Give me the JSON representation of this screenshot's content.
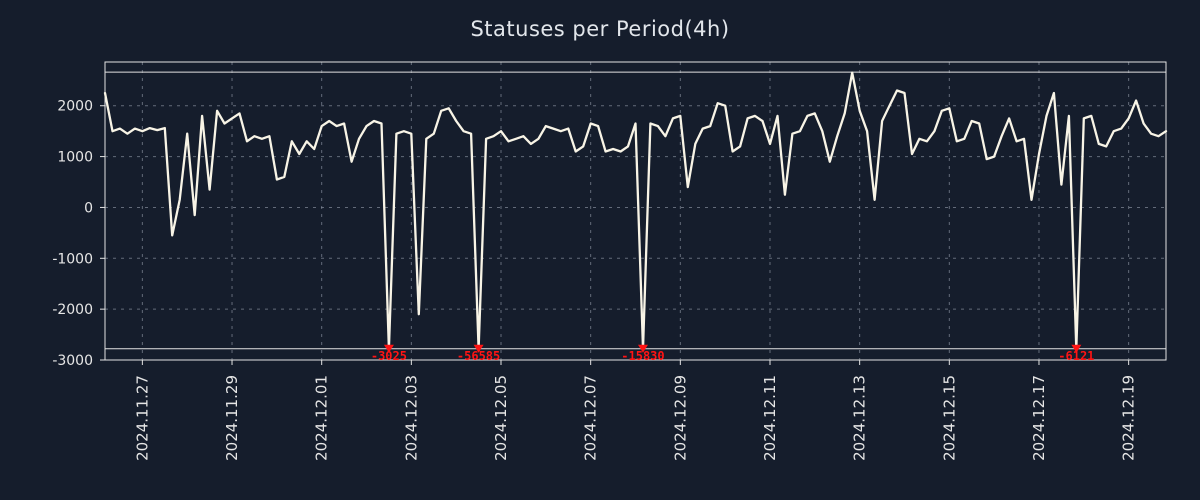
{
  "title": "Statuses per Period(4h)",
  "colors": {
    "background": "#151d2c",
    "line": "#f8f4e6",
    "grid": "#7e8694",
    "border": "#e3e3e3",
    "text": "#e6e6e6",
    "spike": "#ff1414"
  },
  "chart_data": {
    "type": "line",
    "title": "Statuses per Period(4h)",
    "x_start": "2024-11-26 04:00",
    "step_hours": 4,
    "ylim": [
      -3000,
      2860
    ],
    "y_ticks": [
      2000,
      1000,
      0,
      -1000,
      -2000,
      -3000
    ],
    "x_tick_labels": [
      "2024.11.27",
      "2024.11.29",
      "2024.12.01",
      "2024.12.03",
      "2024.12.05",
      "2024.12.07",
      "2024.12.09",
      "2024.12.11",
      "2024.12.13",
      "2024.12.15",
      "2024.12.17",
      "2024.12.19"
    ],
    "x_tick_indices": [
      5,
      17,
      29,
      41,
      53,
      65,
      77,
      89,
      101,
      113,
      125,
      137
    ],
    "x_tick_rotation": 90,
    "grid": true,
    "legend": false,
    "clip_top": 2660,
    "clip_bottom": -2780,
    "values": [
      2250,
      1500,
      1550,
      1450,
      1550,
      1500,
      1560,
      1520,
      1560,
      -550,
      150,
      1450,
      -150,
      1800,
      350,
      1900,
      1650,
      1750,
      1850,
      1300,
      1400,
      1350,
      1400,
      550,
      600,
      1300,
      1050,
      1300,
      1150,
      1600,
      1700,
      1600,
      1650,
      900,
      1350,
      1600,
      1700,
      1650,
      -3025,
      1450,
      1500,
      1450,
      -2100,
      1350,
      1450,
      1900,
      1950,
      1700,
      1500,
      1450,
      -56585,
      1350,
      1400,
      1500,
      1300,
      1350,
      1400,
      1250,
      1350,
      1600,
      1550,
      1500,
      1550,
      1100,
      1200,
      1650,
      1600,
      1100,
      1150,
      1100,
      1200,
      1650,
      -15830,
      1650,
      1600,
      1400,
      1750,
      1800,
      400,
      1250,
      1550,
      1600,
      2050,
      2000,
      1100,
      1200,
      1750,
      1800,
      1700,
      1250,
      1800,
      250,
      1450,
      1500,
      1800,
      1850,
      1500,
      900,
      1400,
      1850,
      2650,
      1900,
      1500,
      150,
      1700,
      2000,
      2300,
      2250,
      1050,
      1350,
      1300,
      1500,
      1900,
      1950,
      1300,
      1350,
      1700,
      1650,
      950,
      1000,
      1400,
      1750,
      1300,
      1350,
      150,
      1050,
      1800,
      2250,
      450,
      1800,
      -6121,
      1750,
      1800,
      1250,
      1200,
      1500,
      1550,
      1750,
      2100,
      1650,
      1450,
      1400,
      1500
    ],
    "spikes": [
      {
        "index": 38,
        "value": -3025,
        "label": "-3025"
      },
      {
        "index": 50,
        "value": -56585,
        "label": "-56585"
      },
      {
        "index": 72,
        "value": -15830,
        "label": "-15830"
      },
      {
        "index": 130,
        "value": -6121,
        "label": "-6121"
      }
    ]
  }
}
